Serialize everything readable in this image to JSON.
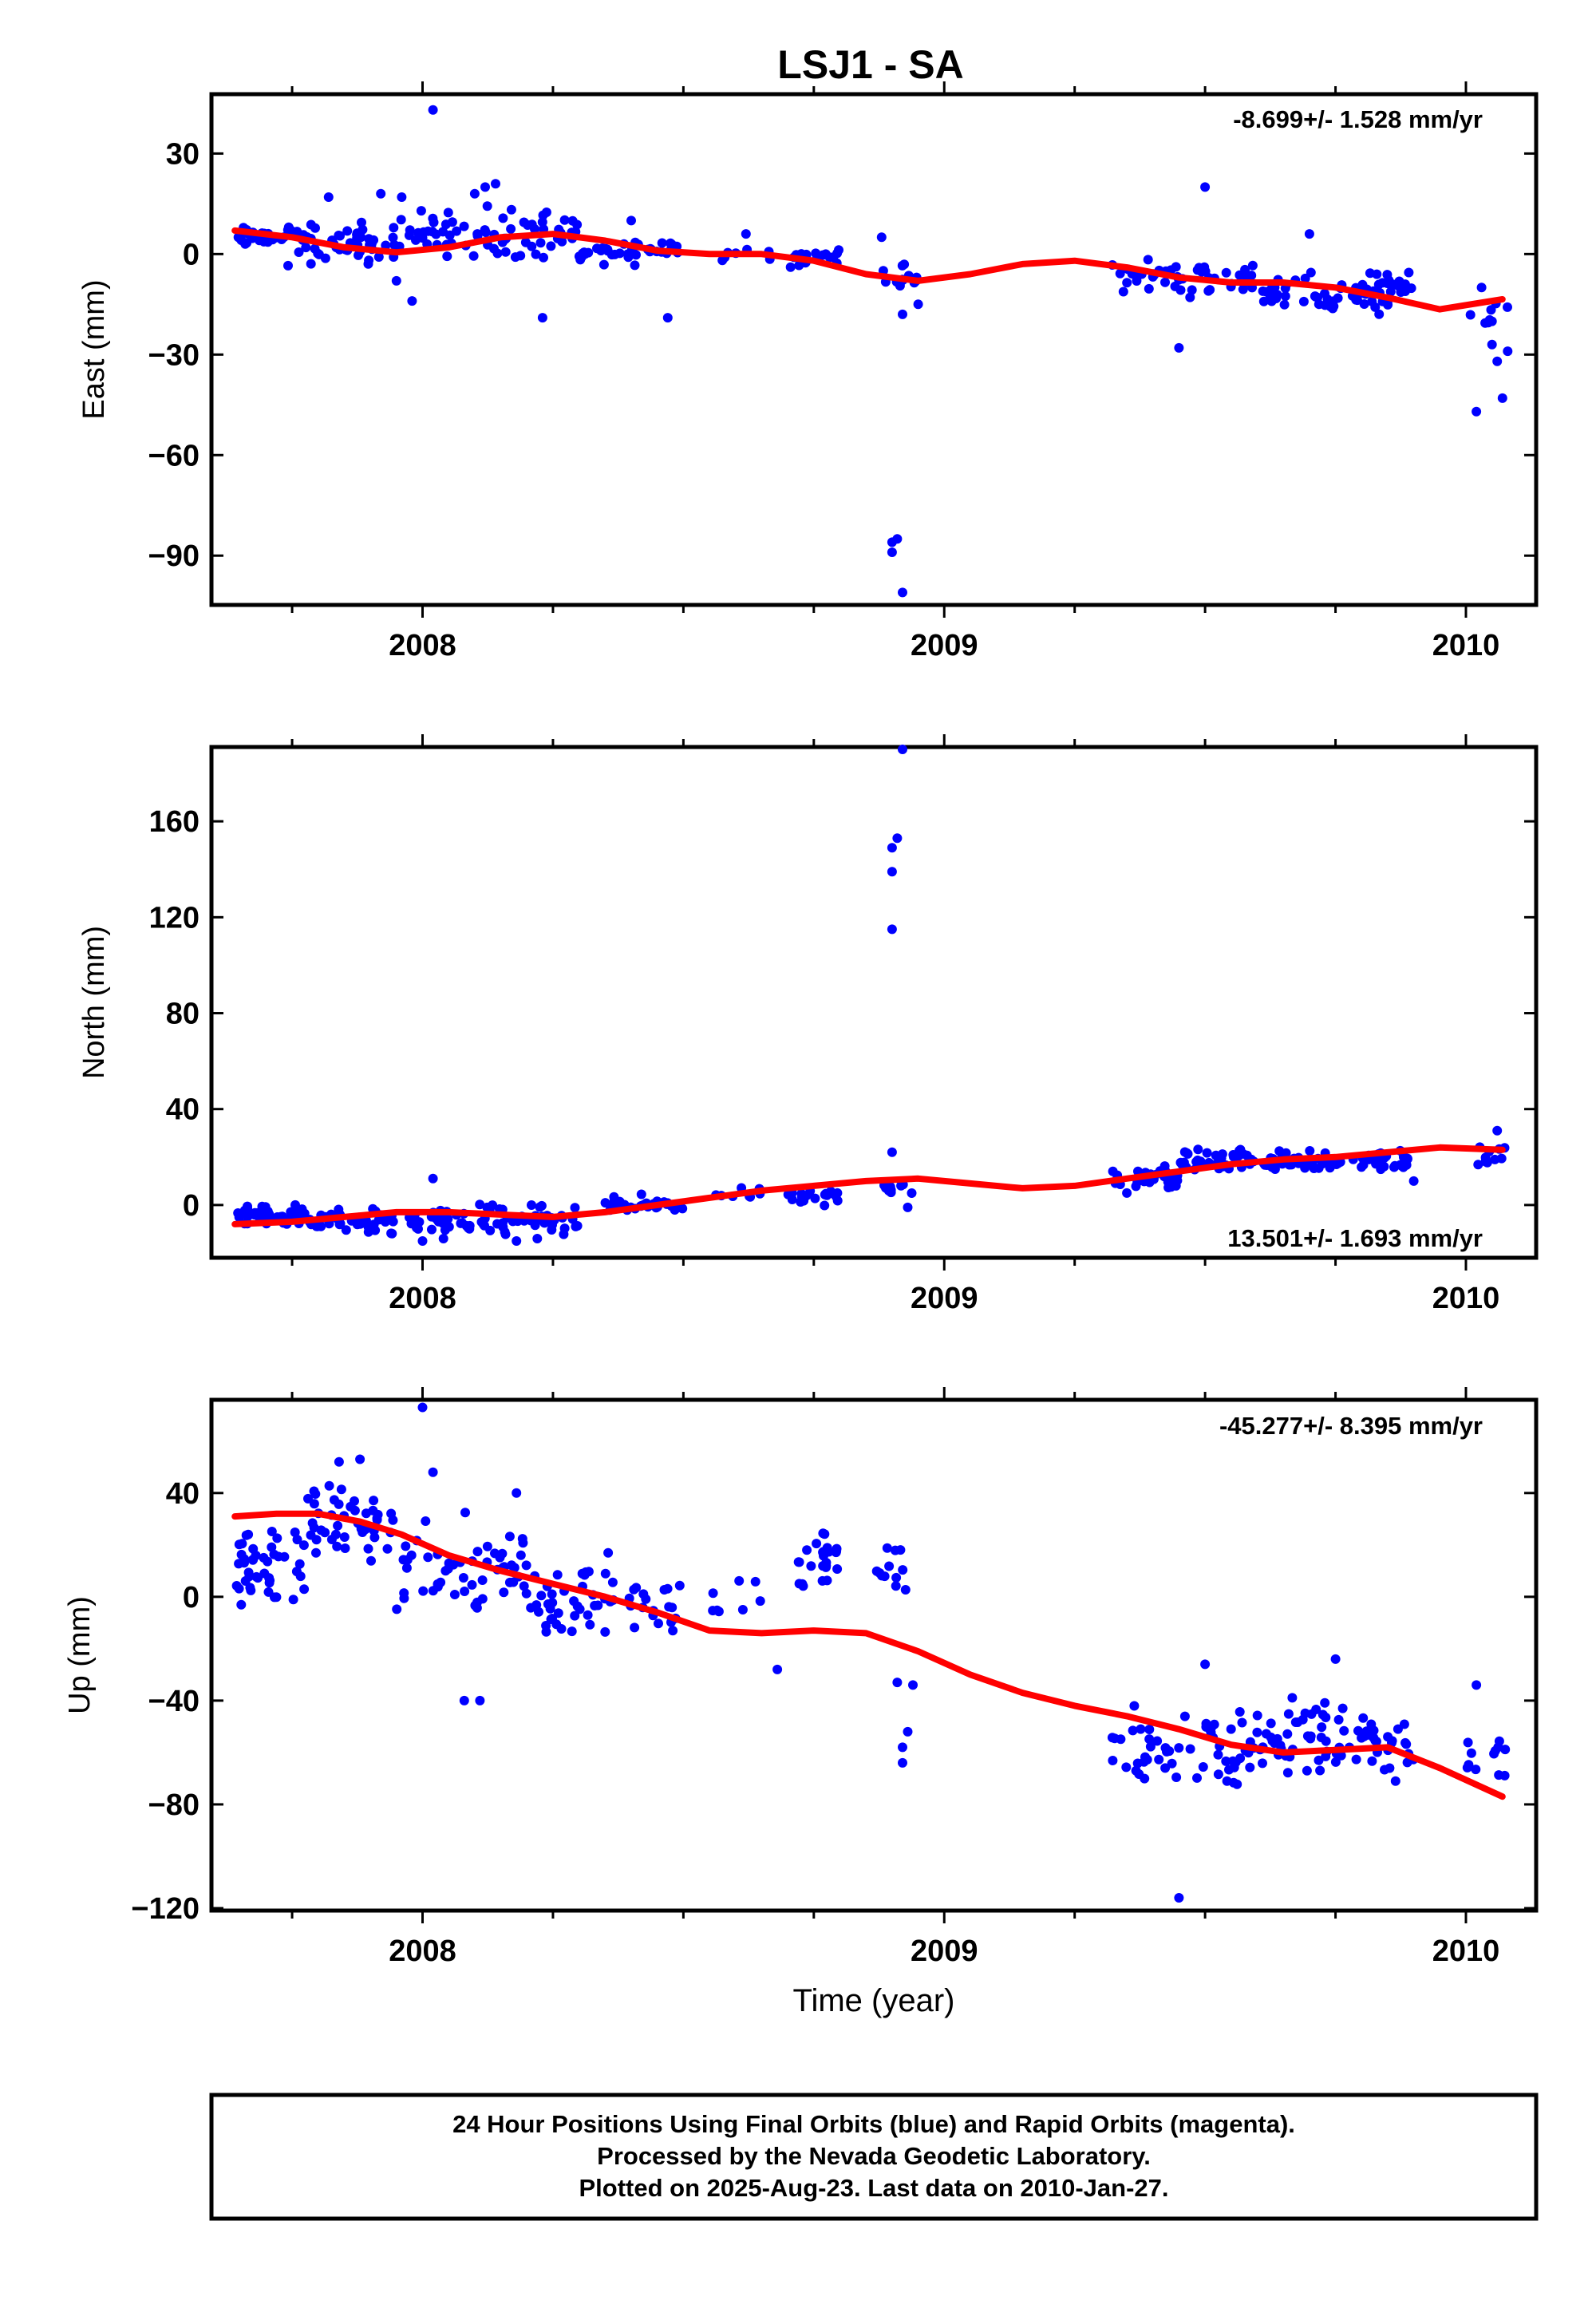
{
  "title": "LSJ1 - SA",
  "colors": {
    "final": "#0000ff",
    "fit": "#ff0000"
  },
  "chart_data": [
    {
      "type": "scatter",
      "ylabel": "East (mm)",
      "xlabel": "",
      "xlim": [
        2007.6,
        2010.13
      ],
      "ylim": [
        -104,
        47
      ],
      "yticks": [
        30,
        0,
        -30,
        -60,
        -90
      ],
      "ytick_labels": [
        "30",
        "0",
        "−30",
        "−60",
        "−90"
      ],
      "xticks": [
        2008,
        2009,
        2010
      ],
      "xtick_labels": [
        "2008",
        "2009",
        "2010"
      ],
      "rate": "-8.699+/- 1.528 mm/yr",
      "fit": {
        "x": [
          2007.64,
          2007.75,
          2007.85,
          2007.95,
          2008.05,
          2008.15,
          2008.25,
          2008.35,
          2008.45,
          2008.55,
          2008.65,
          2008.75,
          2008.85,
          2008.95,
          2009.05,
          2009.15,
          2009.25,
          2009.35,
          2009.45,
          2009.55,
          2009.65,
          2009.75,
          2009.85,
          2009.95,
          2010.07
        ],
        "y": [
          7,
          5,
          2,
          0.5,
          2,
          5,
          6,
          4,
          1,
          0,
          0,
          -2,
          -6,
          -8,
          -6,
          -3,
          -2,
          -4,
          -7,
          -8.5,
          -8.5,
          -10,
          -13,
          -16.5,
          -13.5
        ]
      },
      "clusters": [
        {
          "x0": 2007.64,
          "x1": 2007.72,
          "yc": 5,
          "amp": 2.5,
          "n": 28
        },
        {
          "x0": 2007.72,
          "x1": 2007.95,
          "yc": 3,
          "amp": 5,
          "n": 55
        },
        {
          "x0": 2007.95,
          "x1": 2008.3,
          "yc": 6,
          "amp": 6,
          "n": 75
        },
        {
          "x0": 2008.3,
          "x1": 2008.5,
          "yc": 1,
          "amp": 3,
          "n": 40
        },
        {
          "x0": 2008.55,
          "x1": 2008.72,
          "yc": 0,
          "amp": 3,
          "n": 10
        },
        {
          "x0": 2008.72,
          "x1": 2008.8,
          "yc": -1,
          "amp": 2,
          "n": 18
        },
        {
          "x0": 2008.88,
          "x1": 2008.95,
          "yc": -7,
          "amp": 4,
          "n": 12
        },
        {
          "x0": 2009.32,
          "x1": 2009.6,
          "yc": -7,
          "amp": 4,
          "n": 50
        },
        {
          "x0": 2009.6,
          "x1": 2009.9,
          "yc": -11,
          "amp": 5,
          "n": 70
        },
        {
          "x0": 2010.0,
          "x1": 2010.08,
          "yc": -20,
          "amp": 5,
          "n": 8
        }
      ],
      "outliers": [
        [
          2008.02,
          43
        ],
        [
          2007.82,
          17
        ],
        [
          2007.92,
          18
        ],
        [
          2007.96,
          17
        ],
        [
          2008.12,
          20
        ],
        [
          2008.14,
          21
        ],
        [
          2008.1,
          18
        ],
        [
          2007.95,
          -8
        ],
        [
          2007.98,
          -14
        ],
        [
          2008.23,
          -19
        ],
        [
          2008.47,
          -19
        ],
        [
          2008.4,
          10
        ],
        [
          2008.62,
          6
        ],
        [
          2008.9,
          -89
        ],
        [
          2008.91,
          -85
        ],
        [
          2008.9,
          -86
        ],
        [
          2008.92,
          -101
        ],
        [
          2008.88,
          5
        ],
        [
          2008.95,
          -15
        ],
        [
          2008.92,
          -18
        ],
        [
          2009.5,
          20
        ],
        [
          2009.45,
          -28
        ],
        [
          2009.7,
          6
        ],
        [
          2010.02,
          -47
        ],
        [
          2010.05,
          -27
        ],
        [
          2010.06,
          -32
        ],
        [
          2010.07,
          -43
        ],
        [
          2010.08,
          -29
        ],
        [
          2010.03,
          -10
        ]
      ]
    },
    {
      "type": "scatter",
      "ylabel": "North (mm)",
      "xlabel": "",
      "xlim": [
        2007.6,
        2010.13
      ],
      "ylim": [
        -21,
        190
      ],
      "yticks": [
        160,
        120,
        80,
        40,
        0
      ],
      "ytick_labels": [
        "160",
        "120",
        "80",
        "40",
        "0"
      ],
      "xticks": [
        2008,
        2009,
        2010
      ],
      "xtick_labels": [
        "2008",
        "2009",
        "2010"
      ],
      "rate": "13.501+/- 1.693 mm/yr",
      "fit": {
        "x": [
          2007.64,
          2007.75,
          2007.85,
          2007.95,
          2008.05,
          2008.15,
          2008.25,
          2008.35,
          2008.45,
          2008.55,
          2008.65,
          2008.75,
          2008.85,
          2008.95,
          2009.05,
          2009.15,
          2009.25,
          2009.35,
          2009.45,
          2009.55,
          2009.65,
          2009.75,
          2009.85,
          2009.95,
          2010.07
        ],
        "y": [
          -8,
          -7,
          -5,
          -3,
          -3,
          -4,
          -5,
          -3,
          0,
          3,
          6,
          8,
          10,
          11,
          9,
          7,
          8,
          11,
          14,
          17,
          19,
          20,
          22,
          24,
          23
        ]
      },
      "clusters": [
        {
          "x0": 2007.64,
          "x1": 2007.78,
          "yc": -4,
          "amp": 3,
          "n": 45
        },
        {
          "x0": 2007.78,
          "x1": 2008.0,
          "yc": -7,
          "amp": 4,
          "n": 55
        },
        {
          "x0": 2008.0,
          "x1": 2008.3,
          "yc": -6,
          "amp": 5,
          "n": 70
        },
        {
          "x0": 2008.35,
          "x1": 2008.5,
          "yc": 0,
          "amp": 3,
          "n": 30
        },
        {
          "x0": 2008.55,
          "x1": 2008.65,
          "yc": 5,
          "amp": 2,
          "n": 8
        },
        {
          "x0": 2008.7,
          "x1": 2008.8,
          "yc": 3,
          "amp": 3,
          "n": 20
        },
        {
          "x0": 2008.88,
          "x1": 2008.95,
          "yc": 6,
          "amp": 3,
          "n": 12
        },
        {
          "x0": 2009.32,
          "x1": 2009.45,
          "yc": 11,
          "amp": 4,
          "n": 30
        },
        {
          "x0": 2009.45,
          "x1": 2009.9,
          "yc": 18,
          "amp": 4,
          "n": 110
        },
        {
          "x0": 2010.0,
          "x1": 2010.08,
          "yc": 21,
          "amp": 4,
          "n": 10
        }
      ],
      "outliers": [
        [
          2008.92,
          190
        ],
        [
          2008.91,
          153
        ],
        [
          2008.9,
          149
        ],
        [
          2008.9,
          139
        ],
        [
          2008.9,
          115
        ],
        [
          2008.9,
          22
        ],
        [
          2008.02,
          11
        ],
        [
          2008.0,
          -15
        ],
        [
          2008.04,
          -14
        ],
        [
          2008.18,
          -15
        ],
        [
          2008.22,
          -14
        ],
        [
          2008.93,
          -1
        ],
        [
          2010.06,
          31
        ],
        [
          2009.9,
          10
        ],
        [
          2009.35,
          5
        ]
      ]
    },
    {
      "type": "scatter",
      "ylabel": "Up (mm)",
      "xlabel": "Time (year)",
      "xlim": [
        2007.6,
        2010.13
      ],
      "ylim": [
        -120,
        75
      ],
      "yticks": [
        40,
        0,
        -40,
        -80,
        -120
      ],
      "ytick_labels": [
        "40",
        "0",
        "−40",
        "−80",
        "−120"
      ],
      "xticks": [
        2008,
        2009,
        2010
      ],
      "xtick_labels": [
        "2008",
        "2009",
        "2010"
      ],
      "rate": "-45.277+/- 8.395 mm/yr",
      "fit": {
        "x": [
          2007.64,
          2007.72,
          2007.8,
          2007.88,
          2007.96,
          2008.05,
          2008.15,
          2008.25,
          2008.35,
          2008.45,
          2008.55,
          2008.65,
          2008.75,
          2008.85,
          2008.95,
          2009.05,
          2009.15,
          2009.25,
          2009.35,
          2009.45,
          2009.55,
          2009.65,
          2009.75,
          2009.85,
          2009.95,
          2010.07
        ],
        "y": [
          31,
          32,
          32,
          29,
          24,
          16,
          10,
          5,
          0,
          -6,
          -13,
          -14,
          -13,
          -14,
          -21,
          -30,
          -37,
          -42,
          -46,
          -51,
          -57,
          -60,
          -59,
          -58,
          -66,
          -77
        ]
      },
      "clusters": [
        {
          "x0": 2007.64,
          "x1": 2007.78,
          "yc": 12,
          "amp": 14,
          "n": 45
        },
        {
          "x0": 2007.78,
          "x1": 2007.95,
          "yc": 28,
          "amp": 12,
          "n": 45
        },
        {
          "x0": 2007.95,
          "x1": 2008.2,
          "yc": 10,
          "amp": 15,
          "n": 55
        },
        {
          "x0": 2008.2,
          "x1": 2008.5,
          "yc": -2,
          "amp": 13,
          "n": 60
        },
        {
          "x0": 2008.55,
          "x1": 2008.65,
          "yc": 0,
          "amp": 8,
          "n": 8
        },
        {
          "x0": 2008.72,
          "x1": 2008.8,
          "yc": 14,
          "amp": 8,
          "n": 25
        },
        {
          "x0": 2008.87,
          "x1": 2008.93,
          "yc": 10,
          "amp": 8,
          "n": 12
        },
        {
          "x0": 2009.32,
          "x1": 2009.6,
          "yc": -58,
          "amp": 13,
          "n": 60
        },
        {
          "x0": 2009.6,
          "x1": 2009.9,
          "yc": -55,
          "amp": 13,
          "n": 80
        },
        {
          "x0": 2010.0,
          "x1": 2010.08,
          "yc": -62,
          "amp": 10,
          "n": 12
        }
      ],
      "outliers": [
        [
          2008.0,
          73
        ],
        [
          2008.02,
          48
        ],
        [
          2007.88,
          53
        ],
        [
          2007.84,
          52
        ],
        [
          2008.08,
          -40
        ],
        [
          2008.11,
          -40
        ],
        [
          2008.68,
          -28
        ],
        [
          2008.92,
          -58
        ],
        [
          2008.93,
          -52
        ],
        [
          2008.92,
          -64
        ],
        [
          2008.91,
          -33
        ],
        [
          2008.94,
          -34
        ],
        [
          2009.45,
          -116
        ],
        [
          2009.5,
          -26
        ],
        [
          2009.75,
          -24
        ],
        [
          2010.02,
          -34
        ],
        [
          2008.18,
          40
        ]
      ]
    }
  ],
  "footer": {
    "line1": "24 Hour Positions Using Final Orbits (blue) and Rapid Orbits (magenta).",
    "line2": "Processed by the Nevada Geodetic Laboratory.",
    "line3": "Plotted on 2025-Aug-23. Last data on 2010-Jan-27."
  }
}
